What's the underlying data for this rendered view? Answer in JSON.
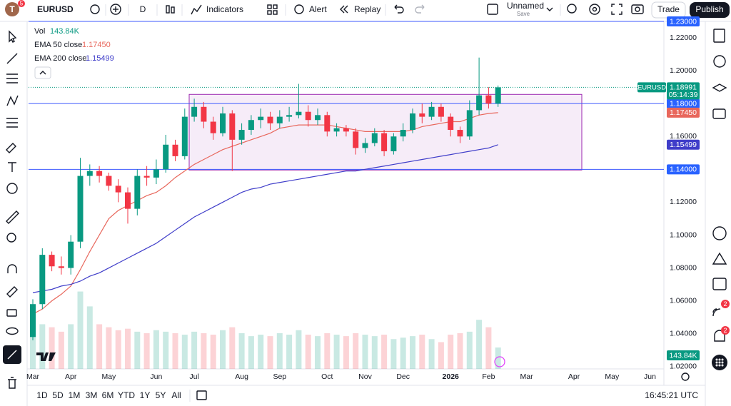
{
  "toolbar": {
    "avatar": "T",
    "avatar_badge": "5",
    "symbol": "EURUSD",
    "interval": "D",
    "indicators": "Indicators",
    "alert": "Alert",
    "replay": "Replay",
    "layout_name": "Unnamed",
    "layout_status": "Save",
    "trade": "Trade",
    "publish": "Publish"
  },
  "right_badges": [
    "2",
    "2"
  ],
  "bottom_bar": {
    "ranges": [
      "1D",
      "5D",
      "1M",
      "3M",
      "6M",
      "YTD",
      "1Y",
      "5Y",
      "All"
    ],
    "clock": "16:45:21 UTC"
  },
  "chart_data": {
    "type": "candlestick",
    "symbol": "EURUSD",
    "categories": [
      "Mar",
      null,
      null,
      null,
      "Apr",
      null,
      null,
      null,
      "May",
      null,
      null,
      null,
      null,
      "Jun",
      null,
      null,
      null,
      "Jul",
      null,
      null,
      null,
      null,
      "Aug",
      null,
      null,
      null,
      "Sep",
      null,
      null,
      null,
      null,
      "Oct",
      null,
      null,
      null,
      "Nov",
      null,
      null,
      null,
      "Dec",
      null,
      null,
      null,
      null,
      "2026",
      null,
      null,
      null,
      "Feb",
      null,
      null,
      null,
      "Mar",
      null,
      null,
      null,
      null,
      "Apr",
      null,
      null,
      null,
      "May",
      null,
      null,
      null,
      "Jun",
      null
    ],
    "open": [
      1.038,
      1.058,
      1.088,
      1.081,
      1.08,
      1.096,
      1.136,
      1.139,
      1.136,
      1.13,
      1.126,
      1.116,
      1.136,
      1.135,
      1.14,
      1.155,
      1.148,
      1.172,
      1.178,
      1.169,
      1.162,
      1.174,
      1.158,
      1.164,
      1.17,
      1.172,
      1.168,
      1.172,
      1.173,
      1.175,
      1.17,
      1.173,
      1.163,
      1.165,
      1.163,
      1.153,
      1.156,
      1.162,
      1.151,
      1.16,
      1.164,
      1.174,
      1.172,
      1.178,
      1.172,
      1.164,
      1.16,
      1.176,
      1.185,
      1.18,
      null,
      null,
      null,
      null,
      null,
      null,
      null,
      null,
      null,
      null,
      null,
      null,
      null,
      null,
      null,
      null,
      null
    ],
    "high": [
      1.061,
      1.092,
      1.09,
      1.087,
      1.1,
      1.147,
      1.143,
      1.142,
      1.138,
      1.134,
      1.129,
      1.14,
      1.142,
      1.146,
      1.161,
      1.158,
      1.177,
      1.183,
      1.181,
      1.172,
      1.178,
      1.176,
      1.168,
      1.173,
      1.177,
      1.175,
      1.176,
      1.178,
      1.192,
      1.179,
      1.177,
      1.175,
      1.168,
      1.167,
      1.165,
      1.159,
      1.165,
      1.164,
      1.162,
      1.168,
      1.177,
      1.18,
      1.181,
      1.18,
      1.174,
      1.166,
      1.182,
      1.208,
      1.19,
      1.191,
      null,
      null,
      null,
      null,
      null,
      null,
      null,
      null,
      null,
      null,
      null,
      null,
      null,
      null,
      null,
      null,
      null
    ],
    "low": [
      1.036,
      1.055,
      1.078,
      1.076,
      1.076,
      1.092,
      1.13,
      1.132,
      1.127,
      1.12,
      1.107,
      1.112,
      1.13,
      1.131,
      1.138,
      1.145,
      1.146,
      1.169,
      1.165,
      1.158,
      1.16,
      1.139,
      1.155,
      1.161,
      1.165,
      1.164,
      1.165,
      1.169,
      1.171,
      1.166,
      1.167,
      1.16,
      1.16,
      1.16,
      1.149,
      1.15,
      1.154,
      1.148,
      1.149,
      1.157,
      1.162,
      1.168,
      1.17,
      1.169,
      1.16,
      1.156,
      1.158,
      1.173,
      1.177,
      1.178,
      null,
      null,
      null,
      null,
      null,
      null,
      null,
      null,
      null,
      null,
      null,
      null,
      null,
      null,
      null,
      null,
      null
    ],
    "close": [
      1.058,
      1.088,
      1.081,
      1.08,
      1.096,
      1.136,
      1.139,
      1.136,
      1.13,
      1.126,
      1.116,
      1.136,
      1.135,
      1.14,
      1.155,
      1.148,
      1.172,
      1.178,
      1.169,
      1.162,
      1.174,
      1.158,
      1.164,
      1.17,
      1.172,
      1.168,
      1.172,
      1.173,
      1.175,
      1.17,
      1.173,
      1.163,
      1.165,
      1.163,
      1.153,
      1.156,
      1.162,
      1.151,
      1.16,
      1.164,
      1.174,
      1.172,
      1.178,
      1.172,
      1.164,
      1.16,
      1.176,
      1.185,
      1.18,
      1.18991,
      null,
      null,
      null,
      null,
      null,
      null,
      null,
      null,
      null,
      null,
      null,
      null,
      null,
      null,
      null,
      null,
      null
    ],
    "up_color": "#089981",
    "down_color": "#f23645",
    "last_price": 1.18991,
    "countdown": "05:14:39",
    "volume": {
      "name": "Vol",
      "values": [
        260,
        300,
        280,
        250,
        300,
        520,
        420,
        300,
        280,
        260,
        270,
        250,
        240,
        260,
        250,
        240,
        230,
        250,
        240,
        230,
        260,
        280,
        240,
        220,
        230,
        220,
        240,
        230,
        260,
        230,
        220,
        240,
        230,
        220,
        240,
        230,
        220,
        230,
        200,
        210,
        220,
        230,
        200,
        180,
        230,
        240,
        250,
        330,
        280,
        143.84,
        null,
        null,
        null,
        null,
        null,
        null,
        null,
        null,
        null,
        null,
        null,
        null,
        null,
        null,
        null,
        null,
        null
      ],
      "last": {
        "value": 143.84,
        "label": "143.84K"
      },
      "color": "#089981"
    },
    "series": [
      {
        "name": "EMA 50 close",
        "color": "#e8675c",
        "values": [
          1.052,
          1.055,
          1.06,
          1.064,
          1.069,
          1.079,
          1.09,
          1.1,
          1.11,
          1.115,
          1.118,
          1.121,
          1.124,
          1.126,
          1.13,
          1.135,
          1.139,
          1.143,
          1.146,
          1.149,
          1.152,
          1.154,
          1.156,
          1.158,
          1.16,
          1.162,
          1.165,
          1.166,
          1.167,
          1.167,
          1.167,
          1.167,
          1.166,
          1.165,
          1.164,
          1.163,
          1.163,
          1.163,
          1.163,
          1.163,
          1.164,
          1.166,
          1.167,
          1.168,
          1.169,
          1.169,
          1.171,
          1.173,
          1.174,
          1.1745,
          null,
          null,
          null,
          null,
          null,
          null,
          null,
          null,
          null,
          null,
          null,
          null,
          null,
          null,
          null,
          null,
          null
        ],
        "last": {
          "value": 1.1745,
          "label": "1.17450"
        }
      },
      {
        "name": "EMA 200 close",
        "color": "#3f3dc9",
        "values": [
          1.065,
          1.066,
          1.067,
          1.069,
          1.07,
          1.072,
          1.075,
          1.077,
          1.08,
          1.083,
          1.086,
          1.089,
          1.092,
          1.095,
          1.099,
          1.103,
          1.107,
          1.111,
          1.114,
          1.117,
          1.12,
          1.123,
          1.126,
          1.128,
          1.129,
          1.131,
          1.132,
          1.133,
          1.134,
          1.135,
          1.136,
          1.137,
          1.138,
          1.139,
          1.139,
          1.14,
          1.141,
          1.142,
          1.143,
          1.144,
          1.145,
          1.146,
          1.147,
          1.148,
          1.149,
          1.15,
          1.151,
          1.152,
          1.153,
          1.155,
          null,
          null,
          null,
          null,
          null,
          null,
          null,
          null,
          null,
          null,
          null,
          null,
          null,
          null,
          null,
          null,
          null
        ],
        "last": 1.15499
      }
    ],
    "levels": [
      {
        "value": 1.23,
        "label": "1.23000"
      },
      {
        "value": 1.18,
        "label": "1.18000"
      },
      {
        "value": 1.14,
        "label": "1.14000"
      }
    ],
    "range_box": {
      "top": 1.1856,
      "bottom": 1.1396
    },
    "ylim": [
      1.0186,
      1.23
    ],
    "yticks": [
      {
        "value": 1.22,
        "label": "1.22000"
      },
      {
        "value": 1.2,
        "label": "1.20000"
      },
      {
        "value": 1.16,
        "label": "1.16000"
      },
      {
        "value": 1.12,
        "label": "1.12000"
      },
      {
        "value": 1.1,
        "label": "1.10000"
      },
      {
        "value": 1.08,
        "label": "1.08000"
      },
      {
        "value": 1.06,
        "label": "1.06000"
      },
      {
        "value": 1.04,
        "label": "1.04000"
      },
      {
        "value": 1.02,
        "label": "1.02000"
      }
    ],
    "vlim": [
      0,
      2335
    ]
  }
}
